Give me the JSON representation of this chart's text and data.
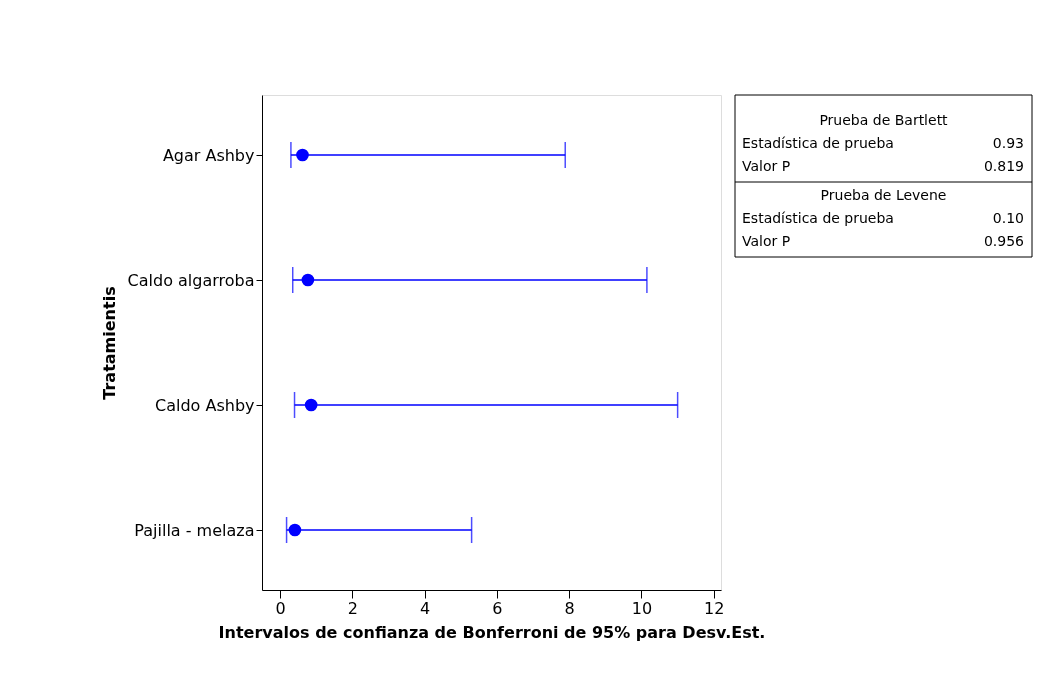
{
  "chart_data": {
    "type": "scatter",
    "orientation": "horizontal",
    "xlabel": "Intervalos de confianza de Bonferroni de 95% para Desv.Est.",
    "ylabel": "Tratamientis",
    "categories": [
      "Agar Ashby",
      "Caldo algarroba",
      "Caldo Ashby",
      "Pajilla - melaza"
    ],
    "values": [
      0.62,
      0.77,
      0.86,
      0.41
    ],
    "errors": [
      [
        0.3,
        7.89
      ],
      [
        0.35,
        10.15
      ],
      [
        0.4,
        11.0
      ],
      [
        0.18,
        5.3
      ]
    ],
    "color": "#0000ff",
    "marker": "circle",
    "xlim": [
      -0.5,
      12.2
    ],
    "xticks": [
      0,
      2,
      4,
      6,
      8,
      10,
      12
    ],
    "grid": false,
    "annotations": [
      "Prueba de Bartlett",
      "Estadística de prueba 0.93",
      "Valor P 0.819",
      "Prueba de Levene",
      "Estadística de prueba 0.10",
      "Valor P 0.956"
    ]
  }
}
